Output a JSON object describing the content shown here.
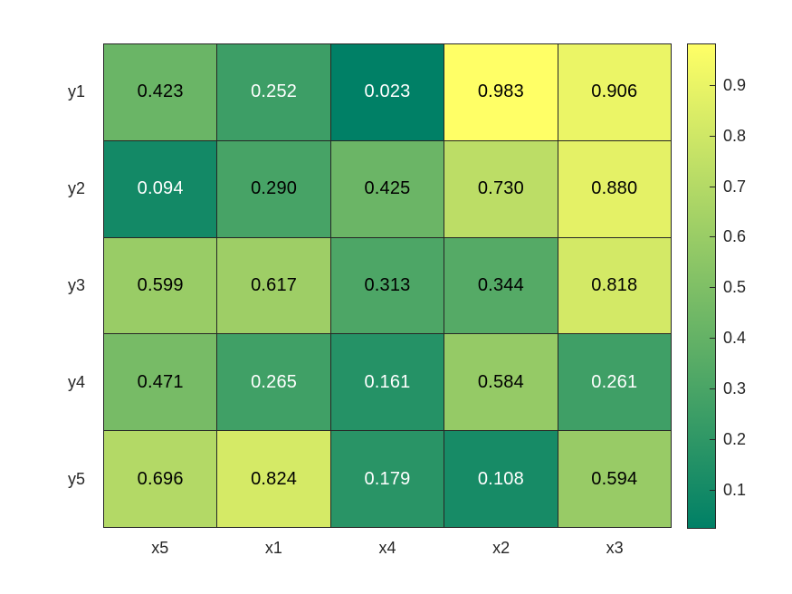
{
  "figure": {
    "background": "#ffffff",
    "grid_line_color": "#262626",
    "tick_label_color": "#262626"
  },
  "chart_data": {
    "type": "heatmap",
    "title": "",
    "x_labels": [
      "x5",
      "x1",
      "x4",
      "x2",
      "x3"
    ],
    "y_labels": [
      "y1",
      "y2",
      "y3",
      "y4",
      "y5"
    ],
    "values": [
      [
        0.423,
        0.252,
        0.023,
        0.983,
        0.906
      ],
      [
        0.094,
        0.29,
        0.425,
        0.73,
        0.88
      ],
      [
        0.599,
        0.617,
        0.313,
        0.344,
        0.818
      ],
      [
        0.471,
        0.265,
        0.161,
        0.584,
        0.261
      ],
      [
        0.696,
        0.824,
        0.179,
        0.108,
        0.594
      ]
    ],
    "value_decimals": 3,
    "colormap": "summer",
    "color_limits": [
      0.023,
      0.983
    ],
    "colormap_low_color": "#008066",
    "colormap_high_color": "#ffff66",
    "cell_text_light": "#ffffff",
    "cell_text_dark": "#000000",
    "colorbar": {
      "position": "right",
      "ticks": [
        0.1,
        0.2,
        0.3,
        0.4,
        0.5,
        0.6,
        0.7,
        0.8,
        0.9
      ],
      "tick_label_format": 1
    },
    "grid": true,
    "legend": false
  }
}
